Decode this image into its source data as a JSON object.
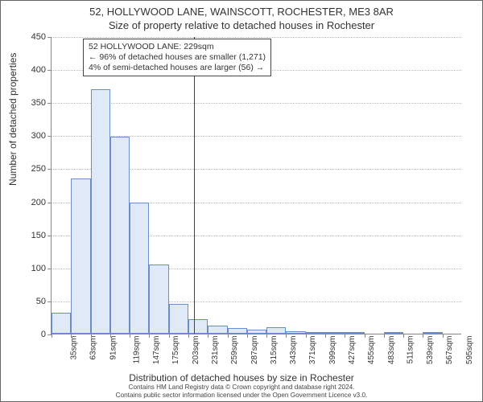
{
  "title_line1": "52, HOLLYWOOD LANE, WAINSCOTT, ROCHESTER, ME3 8AR",
  "title_line2": "Size of property relative to detached houses in Rochester",
  "ylabel": "Number of detached properties",
  "xlabel": "Distribution of detached houses by size in Rochester",
  "footer_line1": "Contains HM Land Registry data © Crown copyright and database right 2024.",
  "footer_line2": "Contains public sector information licensed under the Open Government Licence v3.0.",
  "info_box": {
    "line1": "52 HOLLYWOOD LANE: 229sqm",
    "line2": "← 96% of detached houses are smaller (1,271)",
    "line3": "4% of semi-detached houses are larger (56) →"
  },
  "chart": {
    "type": "histogram",
    "ylim": [
      0,
      450
    ],
    "ytick_step": 50,
    "yticks": [
      0,
      50,
      100,
      150,
      200,
      250,
      300,
      350,
      400,
      450
    ],
    "xtick_labels": [
      "35sqm",
      "63sqm",
      "91sqm",
      "119sqm",
      "147sqm",
      "175sqm",
      "203sqm",
      "231sqm",
      "259sqm",
      "287sqm",
      "315sqm",
      "343sqm",
      "371sqm",
      "399sqm",
      "427sqm",
      "455sqm",
      "483sqm",
      "511sqm",
      "539sqm",
      "567sqm",
      "595sqm"
    ],
    "bar_values": [
      32,
      235,
      370,
      298,
      198,
      105,
      45,
      22,
      12,
      8,
      6,
      10,
      4,
      3,
      2,
      1,
      0,
      1,
      0,
      1,
      0
    ],
    "bar_fill": "#dfe9f7",
    "bar_border": "#6a8fc8",
    "grid_color": "#bbbbbb",
    "axis_color": "#888888",
    "background_color": "#ffffff",
    "marker_color": "#d8001a",
    "marker_x_value": 229,
    "x_min": 35,
    "x_max": 595,
    "label_fontsize": 12,
    "tick_fontsize": 11,
    "title_fontsize": 13
  }
}
